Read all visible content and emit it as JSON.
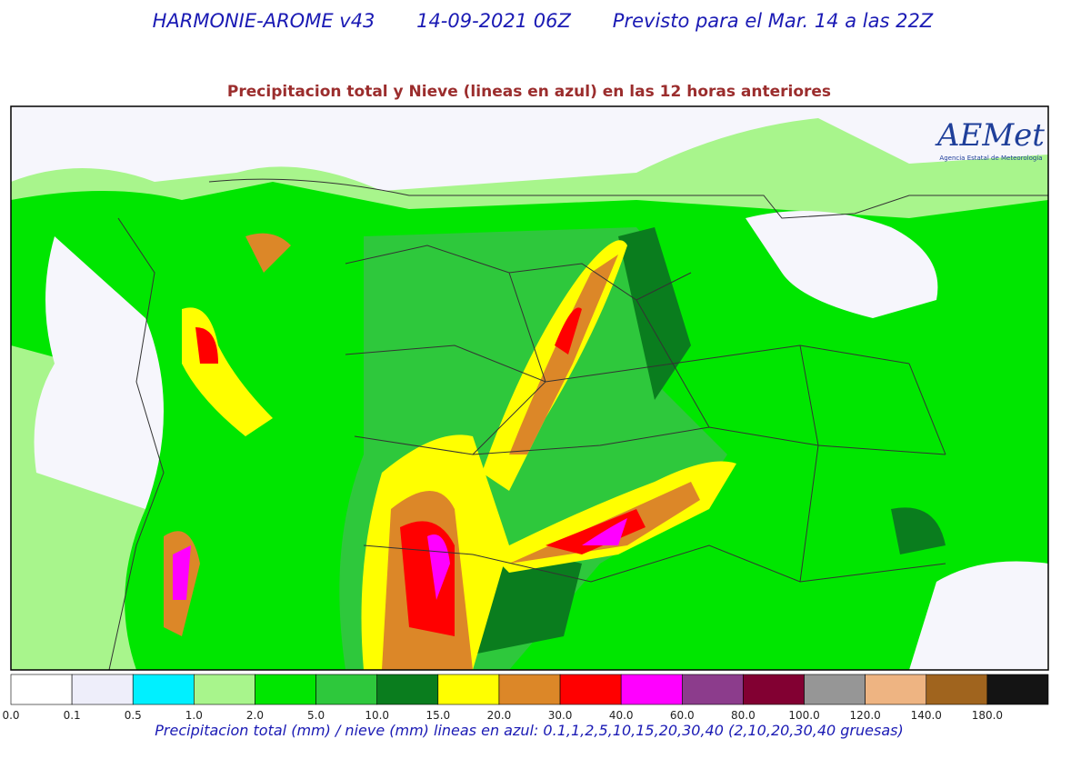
{
  "header": {
    "model": "HARMONIE-AROME v43",
    "run": "14-09-2021 06Z",
    "valid": "Previsto para el Mar. 14 a las 22Z"
  },
  "subtitle": "Precipitacion total y Nieve (lineas en azul) en las 12 horas anteriores",
  "logo": {
    "name": "AEMet",
    "agency": "Agencia Estatal de Meteorología"
  },
  "colorbar": {
    "labels": [
      "0.0",
      "0.1",
      "0.5",
      "1.0",
      "2.0",
      "5.0",
      "10.0",
      "15.0",
      "20.0",
      "30.0",
      "40.0",
      "60.0",
      "80.0",
      "100.0",
      "120.0",
      "140.0",
      "180.0"
    ],
    "colors": [
      "#ffffff",
      "#eeeefa",
      "#00f0ff",
      "#a8f58c",
      "#00e600",
      "#2ec83c",
      "#0a7d1e",
      "#ffff00",
      "#dc8728",
      "#ff0000",
      "#ff00ff",
      "#8c3c8c",
      "#820032",
      "#969696",
      "#eeb482",
      "#a0641e",
      "#141414"
    ]
  },
  "caption": "Precipitacion total (mm) / nieve (mm) lineas en azul: 0.1,1,2,5,10,15,20,30,40  (2,10,20,30,40 gruesas)"
}
